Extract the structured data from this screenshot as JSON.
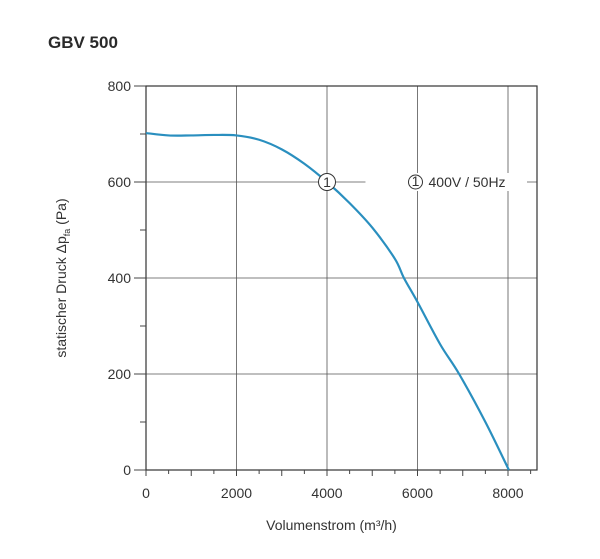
{
  "title": "GBV 500",
  "chart_data": {
    "type": "line",
    "title": "GBV 500",
    "xlabel": "Volumenstrom (m³/h)",
    "ylabel_main": "statischer Druck Δp",
    "ylabel_sub": "fa",
    "ylabel_unit": " (Pa)",
    "xlim": [
      0,
      8600
    ],
    "ylim": [
      0,
      800
    ],
    "xticks": [
      0,
      2000,
      4000,
      6000,
      8000
    ],
    "yticks": [
      0,
      200,
      400,
      600,
      800
    ],
    "grid": true,
    "series_color": "#2a8fbf",
    "series": [
      {
        "name": "400V / 50Hz",
        "marker_label": "1",
        "marker_at": [
          4000,
          600
        ],
        "x": [
          0,
          500,
          1000,
          1500,
          2000,
          2500,
          3000,
          3500,
          4000,
          4500,
          5000,
          5500,
          5700,
          6000,
          6500,
          6920,
          7500,
          8020
        ],
        "y": [
          702,
          697,
          697,
          698,
          697,
          688,
          668,
          638,
          600,
          556,
          505,
          440,
          400,
          350,
          262,
          200,
          100,
          0
        ]
      }
    ],
    "legend": {
      "marker": "1",
      "label": "400V / 50Hz"
    }
  }
}
